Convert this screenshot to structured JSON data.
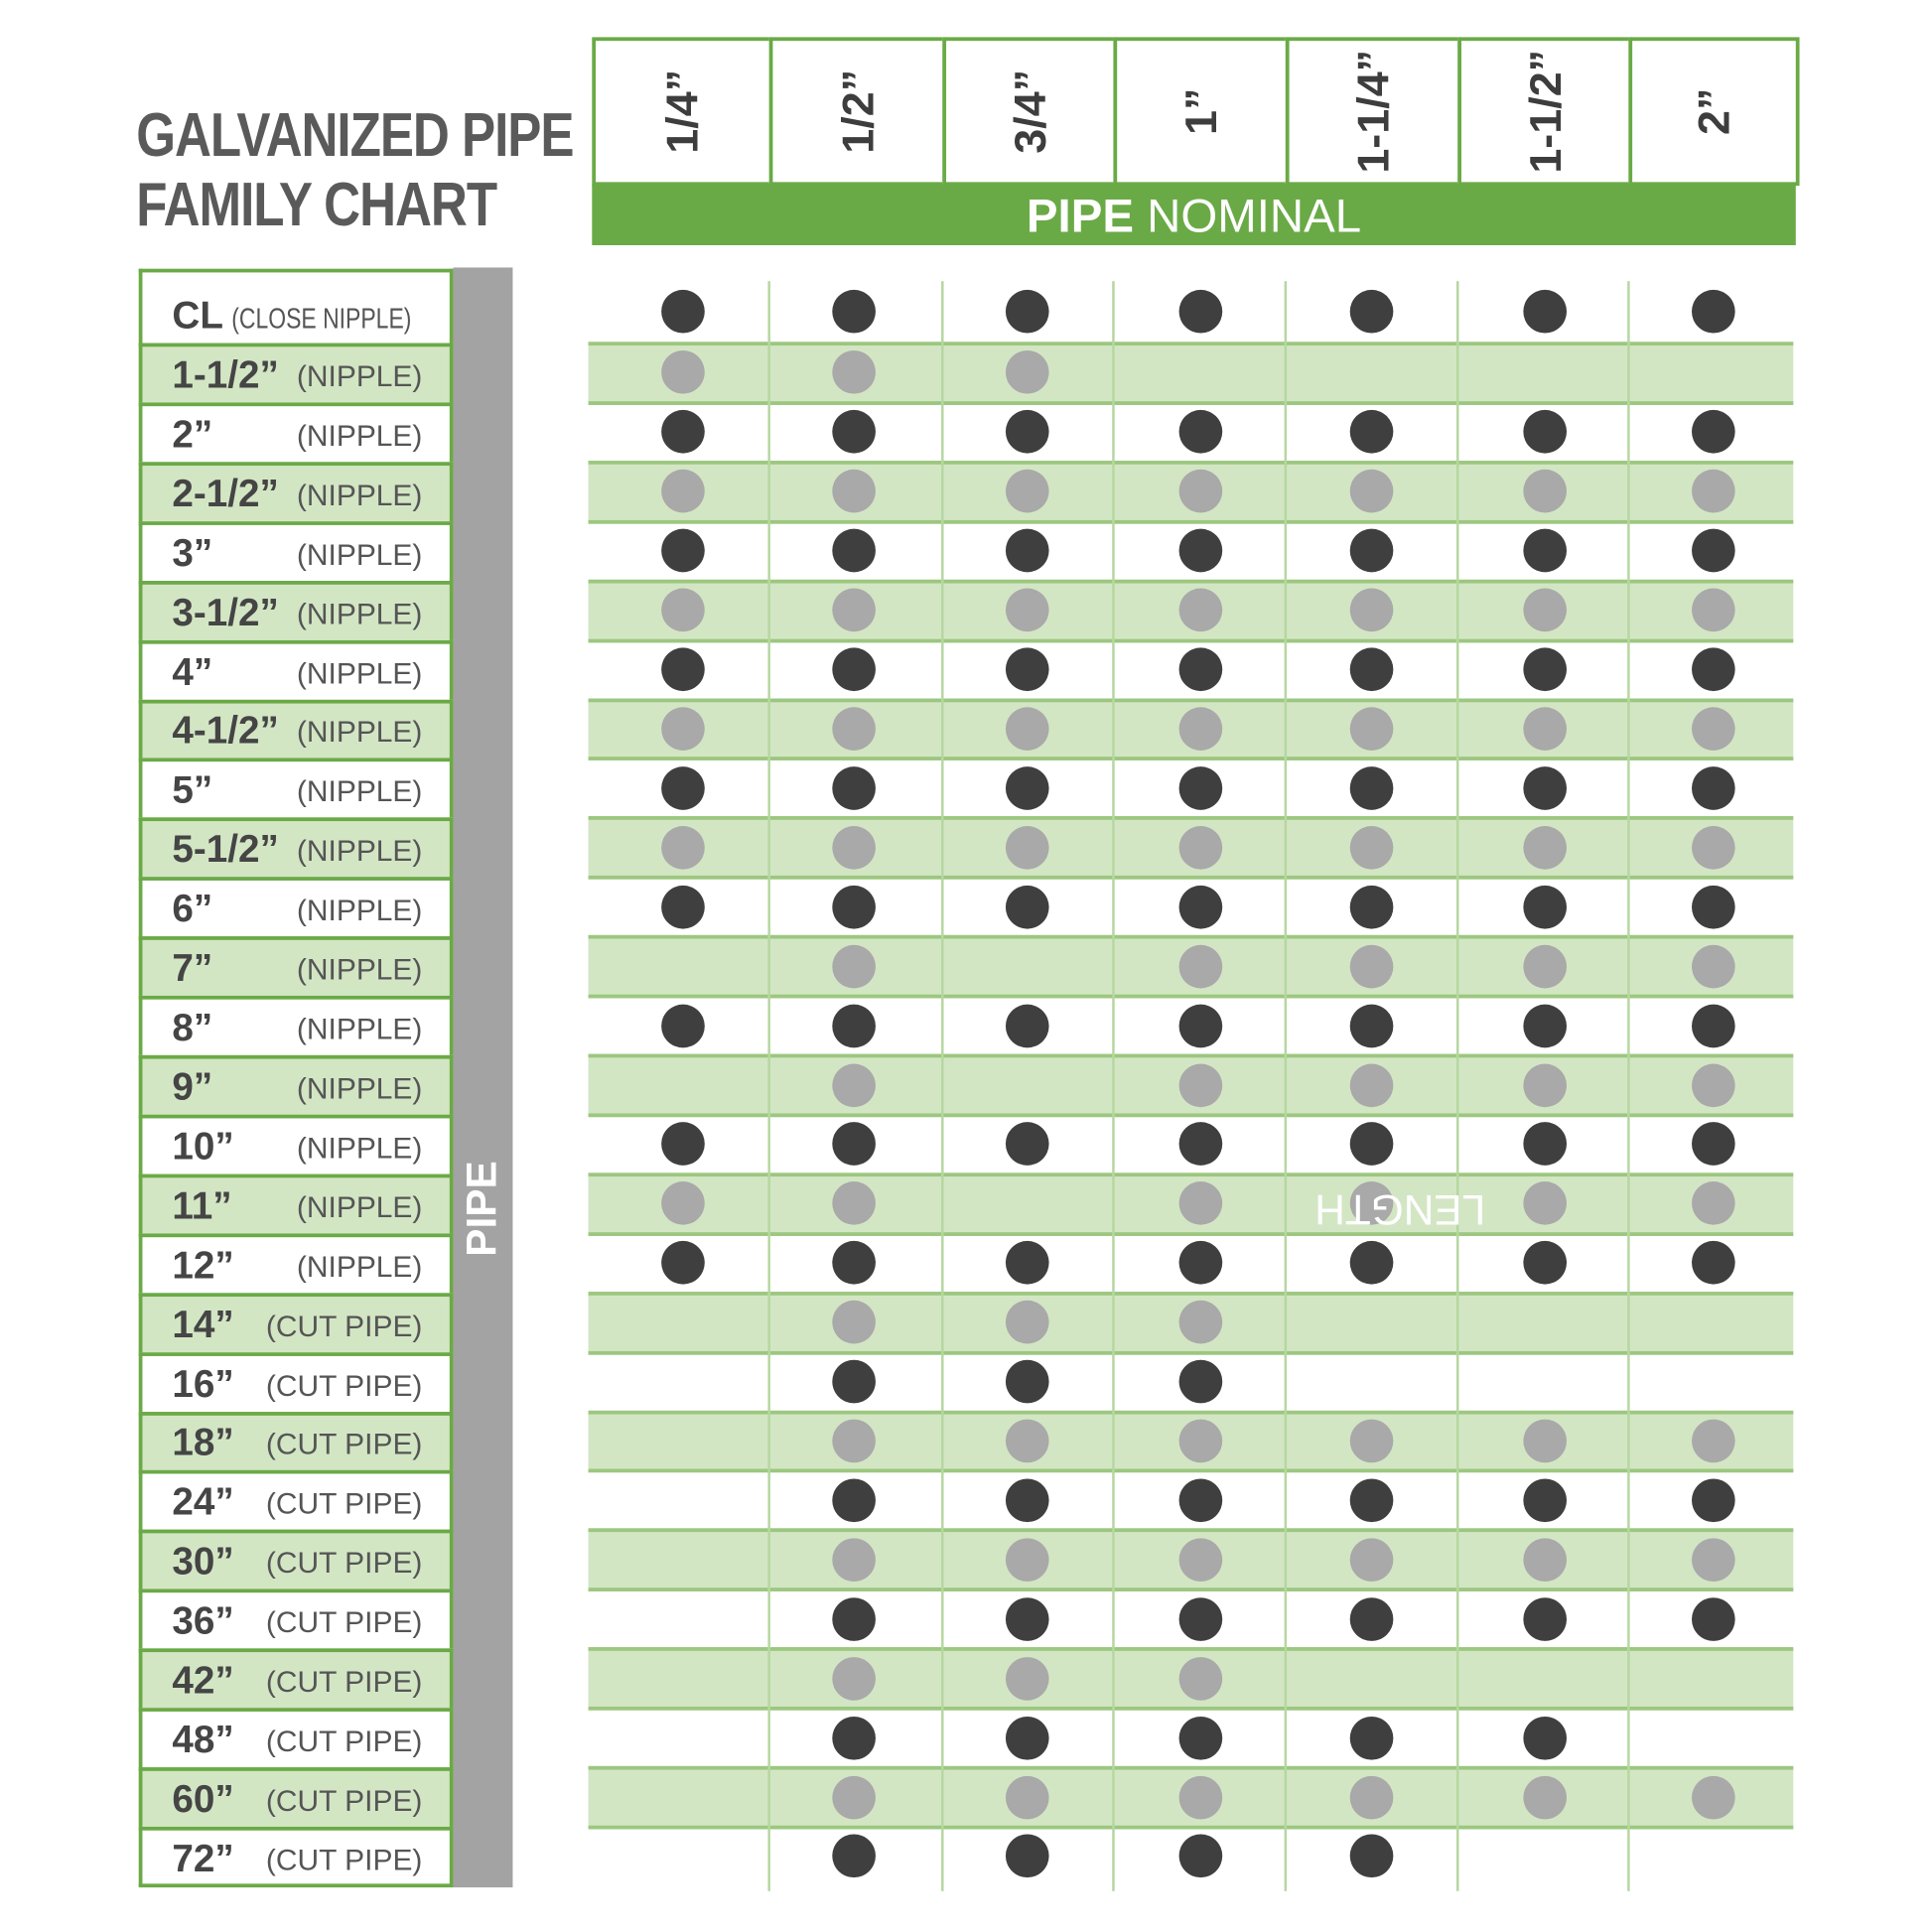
{
  "chart_data": {
    "type": "table",
    "title": [
      "GALVANIZED PIPE",
      "FAMILY CHART"
    ],
    "column_axis": {
      "bold": "PIPE",
      "rest": "NOMINAL"
    },
    "row_axis": {
      "bold": "PIPE",
      "rest": "LENGTH"
    },
    "columns": [
      "1/4”",
      "1/2”",
      "3/4”",
      "1”",
      "1-1/4”",
      "1-1/2”",
      "2”"
    ],
    "rows": [
      {
        "length": "CL",
        "type": "(CLOSE NIPPLE)",
        "available": [
          1,
          1,
          1,
          1,
          1,
          1,
          1
        ]
      },
      {
        "length": "1-1/2”",
        "type": "(NIPPLE)",
        "available": [
          1,
          1,
          1,
          0,
          0,
          0,
          0
        ]
      },
      {
        "length": "2”",
        "type": "(NIPPLE)",
        "available": [
          1,
          1,
          1,
          1,
          1,
          1,
          1
        ]
      },
      {
        "length": "2-1/2”",
        "type": "(NIPPLE)",
        "available": [
          1,
          1,
          1,
          1,
          1,
          1,
          1
        ]
      },
      {
        "length": "3”",
        "type": "(NIPPLE)",
        "available": [
          1,
          1,
          1,
          1,
          1,
          1,
          1
        ]
      },
      {
        "length": "3-1/2”",
        "type": "(NIPPLE)",
        "available": [
          1,
          1,
          1,
          1,
          1,
          1,
          1
        ]
      },
      {
        "length": "4”",
        "type": "(NIPPLE)",
        "available": [
          1,
          1,
          1,
          1,
          1,
          1,
          1
        ]
      },
      {
        "length": "4-1/2”",
        "type": "(NIPPLE)",
        "available": [
          1,
          1,
          1,
          1,
          1,
          1,
          1
        ]
      },
      {
        "length": "5”",
        "type": "(NIPPLE)",
        "available": [
          1,
          1,
          1,
          1,
          1,
          1,
          1
        ]
      },
      {
        "length": "5-1/2”",
        "type": "(NIPPLE)",
        "available": [
          1,
          1,
          1,
          1,
          1,
          1,
          1
        ]
      },
      {
        "length": "6”",
        "type": "(NIPPLE)",
        "available": [
          1,
          1,
          1,
          1,
          1,
          1,
          1
        ]
      },
      {
        "length": "7”",
        "type": "(NIPPLE)",
        "available": [
          0,
          1,
          0,
          1,
          1,
          1,
          1
        ]
      },
      {
        "length": "8”",
        "type": "(NIPPLE)",
        "available": [
          1,
          1,
          1,
          1,
          1,
          1,
          1
        ]
      },
      {
        "length": "9”",
        "type": "(NIPPLE)",
        "available": [
          0,
          1,
          0,
          1,
          1,
          1,
          1
        ]
      },
      {
        "length": "10”",
        "type": "(NIPPLE)",
        "available": [
          1,
          1,
          1,
          1,
          1,
          1,
          1
        ]
      },
      {
        "length": "11”",
        "type": "(NIPPLE)",
        "available": [
          1,
          1,
          0,
          1,
          1,
          1,
          1
        ]
      },
      {
        "length": "12”",
        "type": "(NIPPLE)",
        "available": [
          1,
          1,
          1,
          1,
          1,
          1,
          1
        ]
      },
      {
        "length": "14”",
        "type": "(CUT PIPE)",
        "available": [
          0,
          1,
          1,
          1,
          0,
          0,
          0
        ]
      },
      {
        "length": "16”",
        "type": "(CUT PIPE)",
        "available": [
          0,
          1,
          1,
          1,
          0,
          0,
          0
        ]
      },
      {
        "length": "18”",
        "type": "(CUT PIPE)",
        "available": [
          0,
          1,
          1,
          1,
          1,
          1,
          1
        ]
      },
      {
        "length": "24”",
        "type": "(CUT PIPE)",
        "available": [
          0,
          1,
          1,
          1,
          1,
          1,
          1
        ]
      },
      {
        "length": "30”",
        "type": "(CUT PIPE)",
        "available": [
          0,
          1,
          1,
          1,
          1,
          1,
          1
        ]
      },
      {
        "length": "36”",
        "type": "(CUT PIPE)",
        "available": [
          0,
          1,
          1,
          1,
          1,
          1,
          1
        ]
      },
      {
        "length": "42”",
        "type": "(CUT PIPE)",
        "available": [
          0,
          1,
          1,
          1,
          0,
          0,
          0
        ]
      },
      {
        "length": "48”",
        "type": "(CUT PIPE)",
        "available": [
          0,
          1,
          1,
          1,
          1,
          1,
          0
        ]
      },
      {
        "length": "60”",
        "type": "(CUT PIPE)",
        "available": [
          0,
          1,
          1,
          1,
          1,
          1,
          1
        ]
      },
      {
        "length": "72”",
        "type": "(CUT PIPE)",
        "available": [
          0,
          1,
          1,
          1,
          1,
          0,
          0
        ]
      }
    ],
    "colors": {
      "brand_green": "#6aaa46",
      "band_green": "#d3e6c4",
      "dot_dark": "#3f3f3f",
      "dot_light": "#a9a9a9",
      "axis_grey": "#a3a3a3"
    }
  }
}
